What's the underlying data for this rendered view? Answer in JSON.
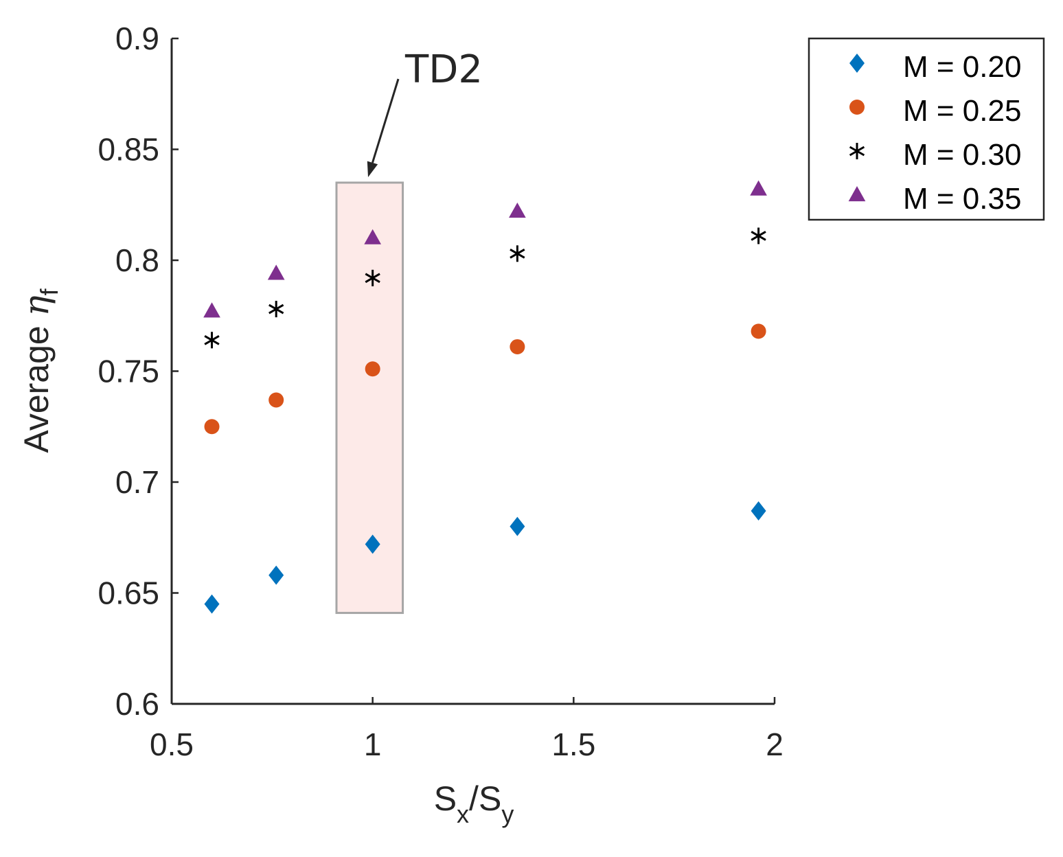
{
  "chart_data": {
    "type": "scatter",
    "title": "",
    "xlabel": {
      "base1": "S",
      "sub1": "x",
      "sep": "/",
      "base2": "S",
      "sub2": "y"
    },
    "ylabel": {
      "prefix": "Average ",
      "symbol": "η",
      "sub": "f"
    },
    "xlim": [
      0.5,
      2
    ],
    "ylim": [
      0.6,
      0.9
    ],
    "xticks": [
      0.5,
      1,
      1.5,
      2
    ],
    "xtick_labels": [
      "0.5",
      "1",
      "1.5",
      "2"
    ],
    "yticks": [
      0.6,
      0.65,
      0.7,
      0.75,
      0.8,
      0.85,
      0.9
    ],
    "ytick_labels": [
      "0.6",
      "0.65",
      "0.7",
      "0.75",
      "0.8",
      "0.85",
      "0.9"
    ],
    "grid": false,
    "legend_position": "top-right-outside",
    "x": [
      0.6,
      0.76,
      1.0,
      1.36,
      1.96
    ],
    "series": [
      {
        "name": "M = 0.20",
        "marker": "diamond",
        "color": "#0072BD",
        "values": [
          0.645,
          0.658,
          0.672,
          0.68,
          0.687
        ]
      },
      {
        "name": "M = 0.25",
        "marker": "circle",
        "color": "#D95319",
        "values": [
          0.725,
          0.737,
          0.751,
          0.761,
          0.768
        ]
      },
      {
        "name": "M = 0.30",
        "marker": "asterisk",
        "color": "#000000",
        "values": [
          0.764,
          0.778,
          0.792,
          0.803,
          0.811
        ]
      },
      {
        "name": "M = 0.35",
        "marker": "triangle",
        "color": "#7E2F8E",
        "values": [
          0.777,
          0.794,
          0.81,
          0.822,
          0.832
        ]
      }
    ],
    "annotation": {
      "text": "TD2",
      "box_x_range": [
        0.91,
        1.075
      ],
      "box_y_range": [
        0.641,
        0.835
      ],
      "box_fill": "#FDEAE8",
      "box_stroke": "#A6A6A6"
    }
  }
}
